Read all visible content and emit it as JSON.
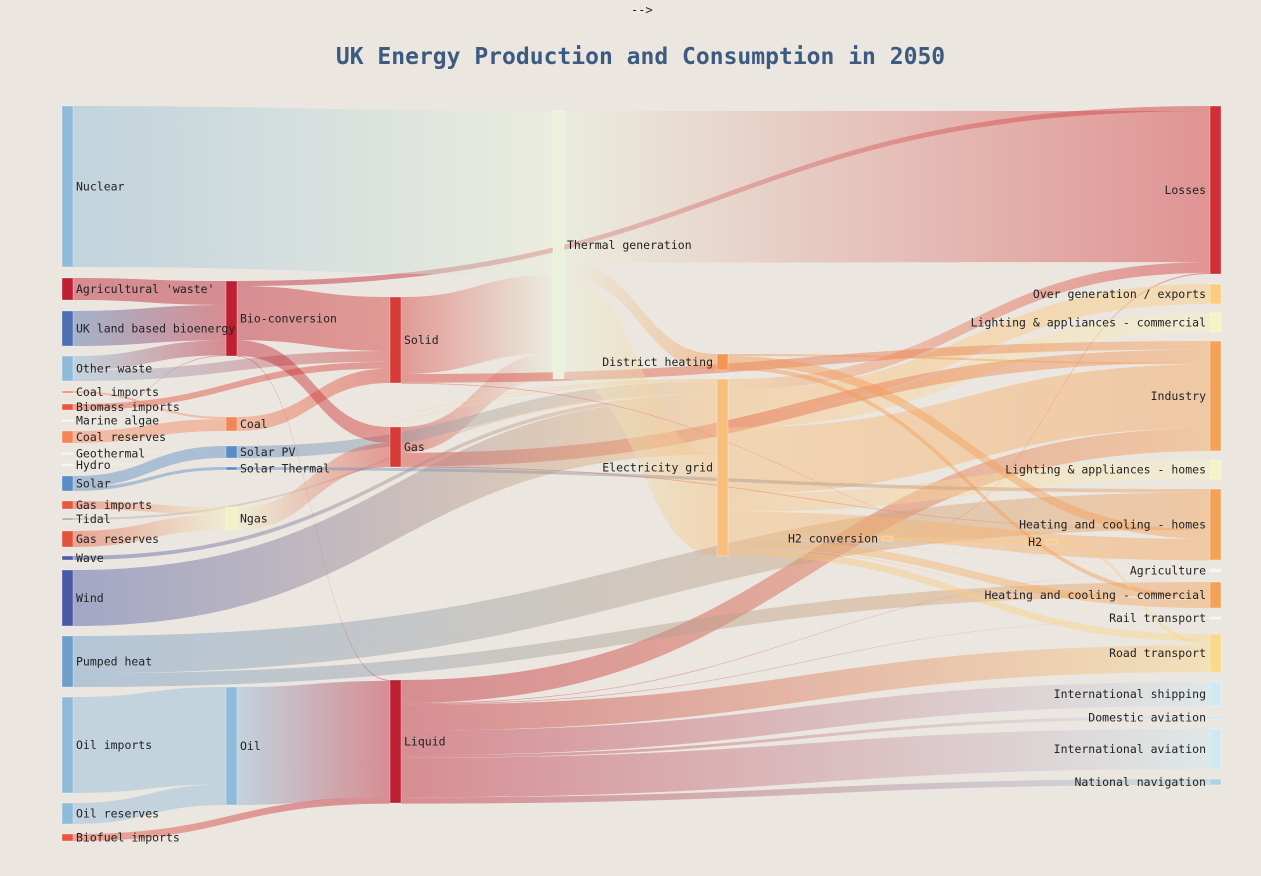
{
  "header": {
    "stray_text": "-->"
  },
  "chart_data": {
    "type": "sankey",
    "title": "UK Energy Production and Consumption in 2050",
    "nodes": [
      {
        "id": "nuclear",
        "label": "Nuclear",
        "color": "#8fbbd9"
      },
      {
        "id": "agri_waste",
        "label": "Agricultural 'waste'",
        "color": "#bd2033"
      },
      {
        "id": "uk_bio",
        "label": "UK land based bioenergy",
        "color": "#4e6fb0"
      },
      {
        "id": "other_waste",
        "label": "Other waste",
        "color": "#8fbbd9"
      },
      {
        "id": "coal_imports",
        "label": "Coal imports",
        "color": "#ef8a62"
      },
      {
        "id": "biomass_imports",
        "label": "Biomass imports",
        "color": "#e8583f"
      },
      {
        "id": "marine_algae",
        "label": "Marine algae",
        "color": "#f4f4f4"
      },
      {
        "id": "coal_reserves",
        "label": "Coal reserves",
        "color": "#f4865a"
      },
      {
        "id": "geothermal",
        "label": "Geothermal",
        "color": "#f4f4f4"
      },
      {
        "id": "hydro",
        "label": "Hydro",
        "color": "#f4f4f4"
      },
      {
        "id": "solar",
        "label": "Solar",
        "color": "#5b8cc4"
      },
      {
        "id": "gas_imports",
        "label": "Gas imports",
        "color": "#e8583f"
      },
      {
        "id": "tidal",
        "label": "Tidal",
        "color": "#aaaaaa"
      },
      {
        "id": "gas_reserves",
        "label": "Gas reserves",
        "color": "#e2533c"
      },
      {
        "id": "wave",
        "label": "Wave",
        "color": "#4a5ca8"
      },
      {
        "id": "wind",
        "label": "Wind",
        "color": "#4a58a6"
      },
      {
        "id": "pumped_heat",
        "label": "Pumped heat",
        "color": "#6f9ecb"
      },
      {
        "id": "oil_imports",
        "label": "Oil imports",
        "color": "#8fbbd9"
      },
      {
        "id": "oil_reserves",
        "label": "Oil reserves",
        "color": "#8fbbd9"
      },
      {
        "id": "biofuel_imports",
        "label": "Biofuel imports",
        "color": "#e8583f"
      },
      {
        "id": "bio_conversion",
        "label": "Bio-conversion",
        "color": "#bd2033"
      },
      {
        "id": "coal",
        "label": "Coal",
        "color": "#f4865a"
      },
      {
        "id": "solar_pv",
        "label": "Solar PV",
        "color": "#5b8cc4"
      },
      {
        "id": "solar_thermal",
        "label": "Solar Thermal",
        "color": "#5b8cc4"
      },
      {
        "id": "ngas",
        "label": "Ngas",
        "color": "#f1f1c6"
      },
      {
        "id": "oil",
        "label": "Oil",
        "color": "#8fbbd9"
      },
      {
        "id": "solid",
        "label": "Solid",
        "color": "#d63b38"
      },
      {
        "id": "gas",
        "label": "Gas",
        "color": "#d63b38"
      },
      {
        "id": "liquid",
        "label": "Liquid",
        "color": "#bd2033"
      },
      {
        "id": "thermal",
        "label": "Thermal generation",
        "color": "#eaf2dc"
      },
      {
        "id": "district_heating",
        "label": "District heating",
        "color": "#f49652"
      },
      {
        "id": "electricity_grid",
        "label": "Electricity grid",
        "color": "#f8bf7c"
      },
      {
        "id": "h2_conversion",
        "label": "H2 conversion",
        "color": "#f8c88c"
      },
      {
        "id": "h2",
        "label": "H2",
        "color": "#f8c88c"
      },
      {
        "id": "losses",
        "label": "Losses",
        "color": "#d22e36"
      },
      {
        "id": "over_gen",
        "label": "Over generation / exports",
        "color": "#fbcc80"
      },
      {
        "id": "light_comm",
        "label": "Lighting & appliances - commercial",
        "color": "#f4f4c6"
      },
      {
        "id": "industry",
        "label": "Industry",
        "color": "#f4a25a"
      },
      {
        "id": "light_homes",
        "label": "Lighting & appliances - homes",
        "color": "#f4f4c6"
      },
      {
        "id": "heat_homes",
        "label": "Heating and cooling - homes",
        "color": "#f4a25a"
      },
      {
        "id": "agriculture",
        "label": "Agriculture",
        "color": "#f4f4f4"
      },
      {
        "id": "heat_comm",
        "label": "Heating and cooling - commercial",
        "color": "#f4a25a"
      },
      {
        "id": "rail",
        "label": "Rail transport",
        "color": "#f4f4f4"
      },
      {
        "id": "road",
        "label": "Road transport",
        "color": "#fbd98a"
      },
      {
        "id": "intl_shipping",
        "label": "International shipping",
        "color": "#cfe8f1"
      },
      {
        "id": "dom_aviation",
        "label": "Domestic aviation",
        "color": "#cfe8f1"
      },
      {
        "id": "intl_aviation",
        "label": "International aviation",
        "color": "#cfe8f1"
      },
      {
        "id": "nat_navigation",
        "label": "National navigation",
        "color": "#a9d2e6"
      }
    ],
    "links": [
      {
        "source": "nuclear",
        "target": "thermal",
        "value": 839
      },
      {
        "source": "agri_waste",
        "target": "bio_conversion",
        "value": 124
      },
      {
        "source": "uk_bio",
        "target": "bio_conversion",
        "value": 182
      },
      {
        "source": "bio_conversion",
        "target": "losses",
        "value": 26
      },
      {
        "source": "bio_conversion",
        "target": "solid",
        "value": 280
      },
      {
        "source": "bio_conversion",
        "target": "gas",
        "value": 81
      },
      {
        "source": "bio_conversion",
        "target": "liquid",
        "value": 0.6
      },
      {
        "source": "other_waste",
        "target": "solid",
        "value": 56
      },
      {
        "source": "other_waste",
        "target": "bio_conversion",
        "value": 77
      },
      {
        "source": "coal_imports",
        "target": "coal",
        "value": 11
      },
      {
        "source": "biomass_imports",
        "target": "solid",
        "value": 35
      },
      {
        "source": "marine_algae",
        "target": "bio_conversion",
        "value": 4
      },
      {
        "source": "coal_reserves",
        "target": "coal",
        "value": 63
      },
      {
        "source": "coal",
        "target": "solid",
        "value": 75
      },
      {
        "source": "geothermal",
        "target": "electricity_grid",
        "value": 7
      },
      {
        "source": "hydro",
        "target": "electricity_grid",
        "value": 6
      },
      {
        "source": "solar",
        "target": "solar_pv",
        "value": 59
      },
      {
        "source": "solar",
        "target": "solar_thermal",
        "value": 19
      },
      {
        "source": "solar_pv",
        "target": "electricity_grid",
        "value": 59
      },
      {
        "source": "solar_thermal",
        "target": "heat_homes",
        "value": 19
      },
      {
        "source": "gas_imports",
        "target": "ngas",
        "value": 40
      },
      {
        "source": "gas_reserves",
        "target": "ngas",
        "value": 82
      },
      {
        "source": "ngas",
        "target": "gas",
        "value": 122
      },
      {
        "source": "tidal",
        "target": "electricity_grid",
        "value": 9
      },
      {
        "source": "wave",
        "target": "electricity_grid",
        "value": 19
      },
      {
        "source": "wind",
        "target": "electricity_grid",
        "value": 289
      },
      {
        "source": "pumped_heat",
        "target": "heat_homes",
        "value": 193
      },
      {
        "source": "pumped_heat",
        "target": "heat_comm",
        "value": 70
      },
      {
        "source": "oil_imports",
        "target": "oil",
        "value": 504
      },
      {
        "source": "oil_reserves",
        "target": "oil",
        "value": 107
      },
      {
        "source": "oil",
        "target": "liquid",
        "value": 611
      },
      {
        "source": "biofuel_imports",
        "target": "liquid",
        "value": 35
      },
      {
        "source": "solid",
        "target": "thermal",
        "value": 400
      },
      {
        "source": "solid",
        "target": "agriculture",
        "value": 0.9
      },
      {
        "source": "solid",
        "target": "industry",
        "value": 46
      },
      {
        "source": "gas",
        "target": "thermal",
        "value": 130
      },
      {
        "source": "gas",
        "target": "industry",
        "value": 70
      },
      {
        "source": "gas",
        "target": "heat_homes",
        "value": 2
      },
      {
        "source": "thermal",
        "target": "losses",
        "value": 787
      },
      {
        "source": "thermal",
        "target": "district_heating",
        "value": 79
      },
      {
        "source": "thermal",
        "target": "electricity_grid",
        "value": 525
      },
      {
        "source": "district_heating",
        "target": "industry",
        "value": 10
      },
      {
        "source": "district_heating",
        "target": "heat_comm",
        "value": 22
      },
      {
        "source": "district_heating",
        "target": "heat_homes",
        "value": 46
      },
      {
        "source": "electricity_grid",
        "target": "over_gen",
        "value": 104
      },
      {
        "source": "electricity_grid",
        "target": "heat_homes",
        "value": 113
      },
      {
        "source": "electricity_grid",
        "target": "h2_conversion",
        "value": 27
      },
      {
        "source": "electricity_grid",
        "target": "industry",
        "value": 342
      },
      {
        "source": "electricity_grid",
        "target": "road",
        "value": 37
      },
      {
        "source": "electricity_grid",
        "target": "agriculture",
        "value": 4
      },
      {
        "source": "electricity_grid",
        "target": "rail",
        "value": 7
      },
      {
        "source": "electricity_grid",
        "target": "light_comm",
        "value": 90
      },
      {
        "source": "electricity_grid",
        "target": "light_homes",
        "value": 93
      },
      {
        "source": "electricity_grid",
        "target": "heat_comm",
        "value": 40
      },
      {
        "source": "electricity_grid",
        "target": "losses",
        "value": 56
      },
      {
        "source": "h2_conversion",
        "target": "h2",
        "value": 20
      },
      {
        "source": "h2_conversion",
        "target": "losses",
        "value": 6
      },
      {
        "source": "h2",
        "target": "road",
        "value": 20
      },
      {
        "source": "liquid",
        "target": "industry",
        "value": 121
      },
      {
        "source": "liquid",
        "target": "road",
        "value": 135
      },
      {
        "source": "liquid",
        "target": "intl_shipping",
        "value": 128
      },
      {
        "source": "liquid",
        "target": "dom_aviation",
        "value": 14
      },
      {
        "source": "liquid",
        "target": "intl_aviation",
        "value": 206
      },
      {
        "source": "liquid",
        "target": "nat_navigation",
        "value": 33
      },
      {
        "source": "liquid",
        "target": "agriculture",
        "value": 2
      },
      {
        "source": "liquid",
        "target": "rail",
        "value": 3
      }
    ]
  }
}
